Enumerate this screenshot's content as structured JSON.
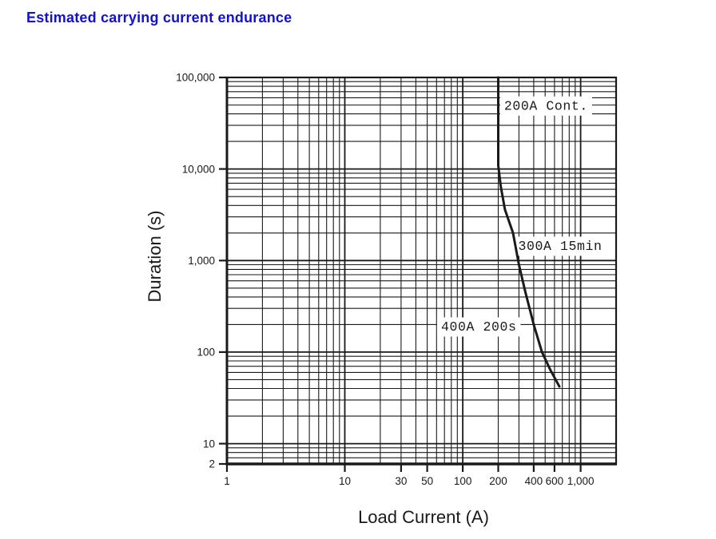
{
  "title": {
    "text": "Estimated carrying current endurance"
  },
  "colors": {
    "title": "#1212cc",
    "ink": "#1a1a1a",
    "background": "#ffffff"
  },
  "chart_data": {
    "type": "line",
    "title": "Estimated carrying current endurance",
    "xlabel": "Load Current (A)",
    "ylabel": "Duration (s)",
    "x_scale": "log",
    "y_scale": "log",
    "xlim": [
      1,
      2000
    ],
    "ylim": [
      2,
      100000
    ],
    "ylim_render": [
      6,
      100000
    ],
    "grid": "full-log-minor-grid-both-axes",
    "legend": "none",
    "x_ticks": [
      {
        "v": 1,
        "label": "1"
      },
      {
        "v": 10,
        "label": "10"
      },
      {
        "v": 30,
        "label": "30"
      },
      {
        "v": 50,
        "label": "50"
      },
      {
        "v": 100,
        "label": "100"
      },
      {
        "v": 200,
        "label": "200"
      },
      {
        "v": 400,
        "label": "400"
      },
      {
        "v": 600,
        "label": "600"
      },
      {
        "v": 1000,
        "label": "1,000"
      }
    ],
    "y_ticks": [
      {
        "v": 100000,
        "label": "100,000"
      },
      {
        "v": 10000,
        "label": "10,000"
      },
      {
        "v": 1000,
        "label": "1,000"
      },
      {
        "v": 100,
        "label": "100"
      },
      {
        "v": 10,
        "label": "10"
      },
      {
        "v": 2,
        "label": "2",
        "clamp_to_bottom": true
      }
    ],
    "series": [
      {
        "name": "carrying-current-endurance",
        "key_points": [
          {
            "current_A": 200,
            "duration": "continuous"
          },
          {
            "current_A": 300,
            "duration_s": 900
          },
          {
            "current_A": 400,
            "duration_s": 200
          }
        ],
        "points": [
          [
            200,
            100000
          ],
          [
            200,
            11000
          ],
          [
            210,
            6500
          ],
          [
            228,
            3600
          ],
          [
            267,
            2000
          ],
          [
            300,
            900
          ],
          [
            340,
            450
          ],
          [
            400,
            200
          ],
          [
            470,
            100
          ],
          [
            550,
            65
          ],
          [
            660,
            42
          ]
        ]
      }
    ],
    "annotations": [
      {
        "text": "200A Cont.",
        "x": 510,
        "y": 50000
      },
      {
        "text": "300A 15min",
        "x": 671,
        "y": 1470
      },
      {
        "text": "400A 200s",
        "x": 137,
        "y": 193
      }
    ]
  }
}
